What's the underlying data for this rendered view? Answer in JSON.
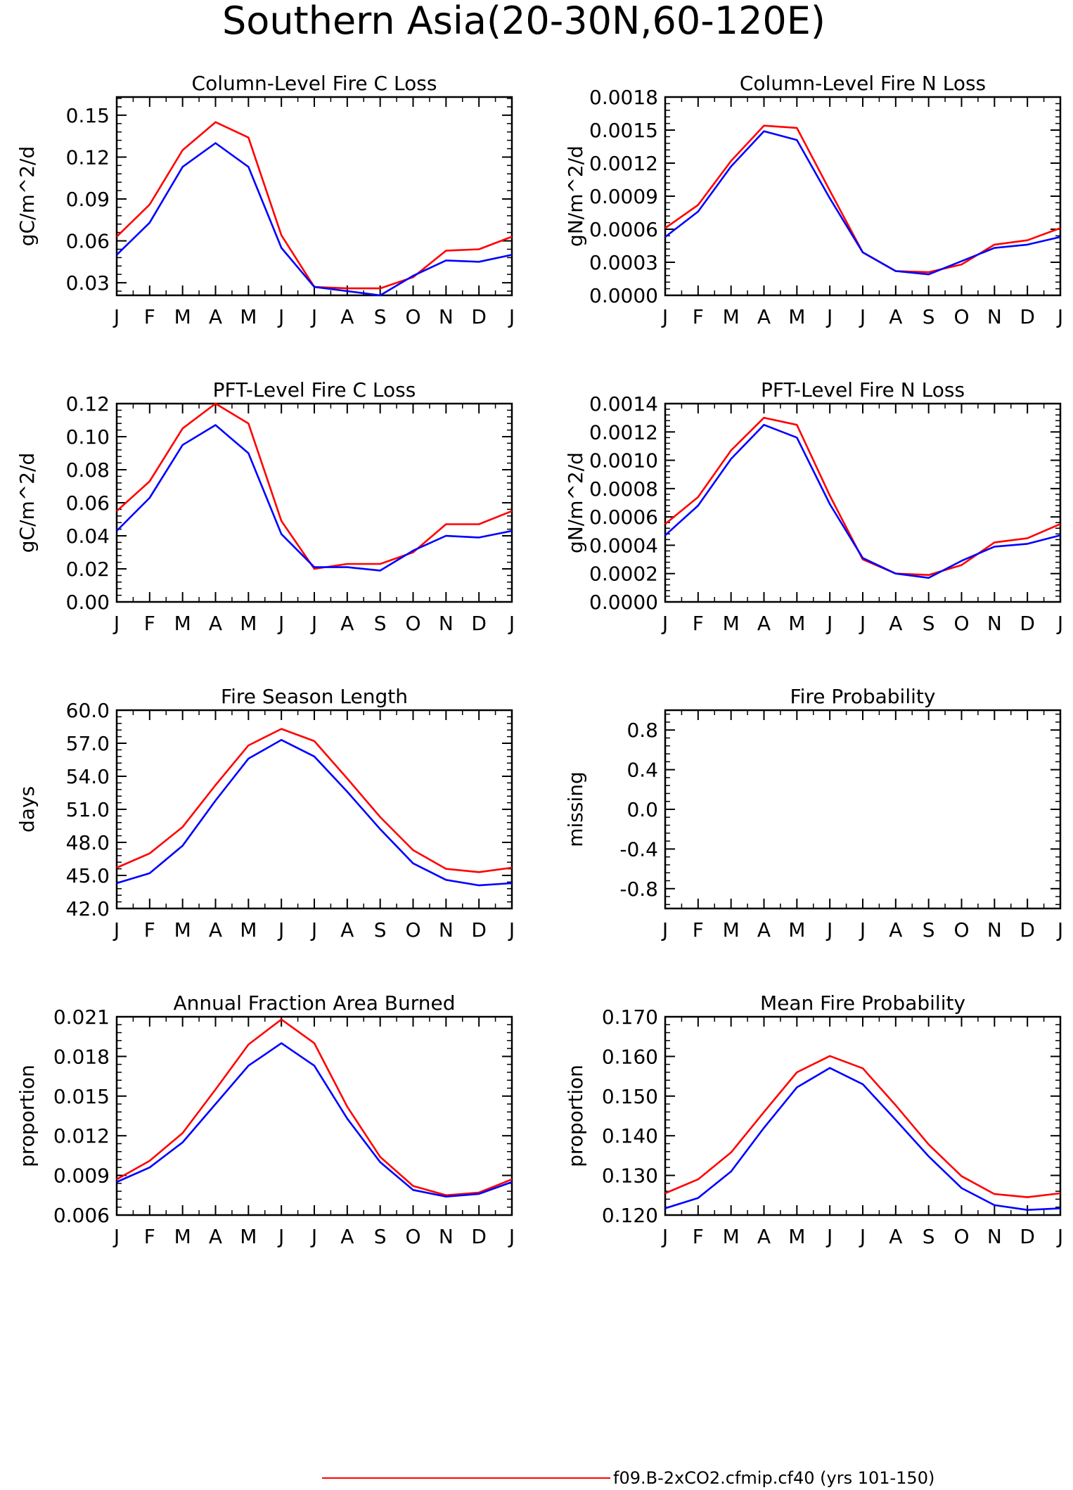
{
  "page_title": "Southern Asia(20-30N,60-120E)",
  "months": [
    "J",
    "F",
    "M",
    "A",
    "M",
    "J",
    "J",
    "A",
    "S",
    "O",
    "N",
    "D",
    "J"
  ],
  "colors": {
    "series_1": "#ff0000",
    "series_2": "#0000ff",
    "axis": "#000000"
  },
  "legend": {
    "entries": [
      {
        "label": "f09.B-2xCO2.cfmip.cf40 (yrs 101-150)",
        "color": "#ff0000"
      }
    ]
  },
  "chart_data": [
    {
      "type": "line",
      "title": "Column-Level Fire C Loss",
      "ylabel": "gC/m^2/d",
      "yticks": [
        "0.03",
        "0.06",
        "0.09",
        "0.12",
        "0.15"
      ],
      "ylim": [
        0.021,
        0.163
      ],
      "x": [
        "J",
        "F",
        "M",
        "A",
        "M",
        "J",
        "J",
        "A",
        "S",
        "O",
        "N",
        "D",
        "J"
      ],
      "series": [
        {
          "color": "#ff0000",
          "values": [
            0.063,
            0.086,
            0.125,
            0.145,
            0.134,
            0.064,
            0.027,
            0.026,
            0.026,
            0.034,
            0.053,
            0.054,
            0.063
          ]
        },
        {
          "color": "#0000ff",
          "values": [
            0.05,
            0.073,
            0.113,
            0.13,
            0.113,
            0.055,
            0.027,
            0.024,
            0.021,
            0.035,
            0.046,
            0.045,
            0.05
          ]
        }
      ]
    },
    {
      "type": "line",
      "title": "Column-Level Fire N Loss",
      "ylabel": "gN/m^2/d",
      "yticks": [
        "0.0000",
        "0.0003",
        "0.0006",
        "0.0009",
        "0.0012",
        "0.0015",
        "0.0018"
      ],
      "ylim": [
        0.0,
        0.0018
      ],
      "x": [
        "J",
        "F",
        "M",
        "A",
        "M",
        "J",
        "J",
        "A",
        "S",
        "O",
        "N",
        "D",
        "J"
      ],
      "series": [
        {
          "color": "#ff0000",
          "values": [
            0.00061,
            0.00082,
            0.00122,
            0.00154,
            0.00152,
            0.00095,
            0.00039,
            0.00022,
            0.00021,
            0.00028,
            0.00046,
            0.0005,
            0.00061
          ]
        },
        {
          "color": "#0000ff",
          "values": [
            0.00053,
            0.00076,
            0.00117,
            0.00149,
            0.00141,
            0.00088,
            0.00039,
            0.00022,
            0.00019,
            0.00031,
            0.00043,
            0.00046,
            0.00053
          ]
        }
      ]
    },
    {
      "type": "line",
      "title": "PFT-Level Fire C Loss",
      "ylabel": "gC/m^2/d",
      "yticks": [
        "0.00",
        "0.02",
        "0.04",
        "0.06",
        "0.08",
        "0.10",
        "0.12"
      ],
      "ylim": [
        0.0,
        0.12
      ],
      "x": [
        "J",
        "F",
        "M",
        "A",
        "M",
        "J",
        "J",
        "A",
        "S",
        "O",
        "N",
        "D",
        "J"
      ],
      "series": [
        {
          "color": "#ff0000",
          "values": [
            0.055,
            0.073,
            0.105,
            0.12,
            0.108,
            0.049,
            0.02,
            0.023,
            0.023,
            0.03,
            0.047,
            0.047,
            0.055
          ]
        },
        {
          "color": "#0000ff",
          "values": [
            0.043,
            0.063,
            0.095,
            0.107,
            0.09,
            0.041,
            0.021,
            0.021,
            0.019,
            0.031,
            0.04,
            0.039,
            0.043
          ]
        }
      ]
    },
    {
      "type": "line",
      "title": "PFT-Level Fire N Loss",
      "ylabel": "gN/m^2/d",
      "yticks": [
        "0.0000",
        "0.0002",
        "0.0004",
        "0.0006",
        "0.0008",
        "0.0010",
        "0.0012",
        "0.0014"
      ],
      "ylim": [
        0.0,
        0.0014
      ],
      "x": [
        "J",
        "F",
        "M",
        "A",
        "M",
        "J",
        "J",
        "A",
        "S",
        "O",
        "N",
        "D",
        "J"
      ],
      "series": [
        {
          "color": "#ff0000",
          "values": [
            0.00055,
            0.00074,
            0.00107,
            0.0013,
            0.00125,
            0.00075,
            0.0003,
            0.0002,
            0.00019,
            0.00026,
            0.00042,
            0.00045,
            0.00055
          ]
        },
        {
          "color": "#0000ff",
          "values": [
            0.00047,
            0.00068,
            0.00101,
            0.00125,
            0.00116,
            0.00069,
            0.00031,
            0.0002,
            0.00017,
            0.00029,
            0.00039,
            0.00041,
            0.00047
          ]
        }
      ]
    },
    {
      "type": "line",
      "title": "Fire Season Length",
      "ylabel": "days",
      "yticks": [
        "42.0",
        "45.0",
        "48.0",
        "51.0",
        "54.0",
        "57.0",
        "60.0"
      ],
      "ylim": [
        42.0,
        60.0
      ],
      "x": [
        "J",
        "F",
        "M",
        "A",
        "M",
        "J",
        "J",
        "A",
        "S",
        "O",
        "N",
        "D",
        "J"
      ],
      "series": [
        {
          "color": "#ff0000",
          "values": [
            45.7,
            47.0,
            49.4,
            53.2,
            56.8,
            58.3,
            57.2,
            53.8,
            50.3,
            47.3,
            45.6,
            45.3,
            45.7
          ]
        },
        {
          "color": "#0000ff",
          "values": [
            44.3,
            45.2,
            47.7,
            51.8,
            55.6,
            57.3,
            55.8,
            52.6,
            49.2,
            46.1,
            44.6,
            44.1,
            44.3
          ]
        }
      ]
    },
    {
      "type": "line",
      "title": "Fire Probability",
      "ylabel": "missing",
      "yticks": [
        "-0.8",
        "-0.4",
        "0.0",
        "0.4",
        "0.8"
      ],
      "ylim": [
        -1.0,
        1.0
      ],
      "x": [
        "J",
        "F",
        "M",
        "A",
        "M",
        "J",
        "J",
        "A",
        "S",
        "O",
        "N",
        "D",
        "J"
      ],
      "series": []
    },
    {
      "type": "line",
      "title": "Annual Fraction Area Burned",
      "ylabel": "proportion",
      "yticks": [
        "0.006",
        "0.009",
        "0.012",
        "0.015",
        "0.018",
        "0.021"
      ],
      "ylim": [
        0.006,
        0.021
      ],
      "x": [
        "J",
        "F",
        "M",
        "A",
        "M",
        "J",
        "J",
        "A",
        "S",
        "O",
        "N",
        "D",
        "J"
      ],
      "series": [
        {
          "color": "#ff0000",
          "values": [
            0.0087,
            0.0101,
            0.0122,
            0.0155,
            0.0189,
            0.0208,
            0.019,
            0.0142,
            0.0104,
            0.0082,
            0.0075,
            0.0077,
            0.0087
          ]
        },
        {
          "color": "#0000ff",
          "values": [
            0.0085,
            0.0096,
            0.0115,
            0.0144,
            0.0173,
            0.019,
            0.0173,
            0.0133,
            0.01,
            0.0079,
            0.0074,
            0.0076,
            0.0085
          ]
        }
      ]
    },
    {
      "type": "line",
      "title": "Mean Fire Probability",
      "ylabel": "proportion",
      "yticks": [
        "0.120",
        "0.130",
        "0.140",
        "0.150",
        "0.160",
        "0.170"
      ],
      "ylim": [
        0.12,
        0.17
      ],
      "x": [
        "J",
        "F",
        "M",
        "A",
        "M",
        "J",
        "J",
        "A",
        "S",
        "O",
        "N",
        "D",
        "J"
      ],
      "series": [
        {
          "color": "#ff0000",
          "values": [
            0.1255,
            0.129,
            0.1358,
            0.146,
            0.156,
            0.1601,
            0.157,
            0.1477,
            0.1378,
            0.1298,
            0.1253,
            0.1245,
            0.1255
          ]
        },
        {
          "color": "#0000ff",
          "values": [
            0.1217,
            0.1243,
            0.131,
            0.142,
            0.1522,
            0.1571,
            0.153,
            0.144,
            0.1348,
            0.1268,
            0.1225,
            0.1213,
            0.1217
          ]
        }
      ]
    }
  ]
}
